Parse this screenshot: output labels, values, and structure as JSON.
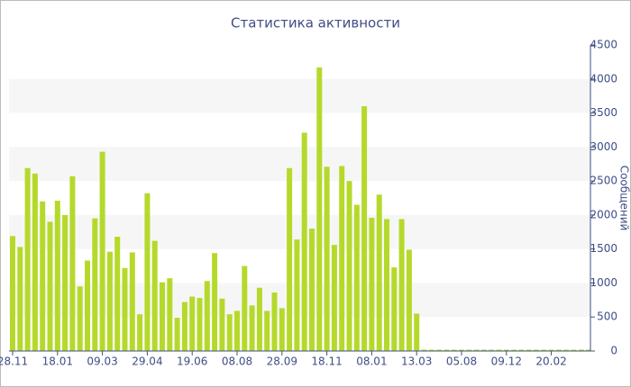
{
  "chart_data": {
    "type": "bar",
    "title": "Статистика активности",
    "y_axis_label": "Сообщений",
    "color": "#b5d92b",
    "categories": [
      "28.11",
      null,
      null,
      null,
      null,
      null,
      "18.01",
      null,
      null,
      null,
      null,
      null,
      "09.03",
      null,
      null,
      null,
      null,
      null,
      "29.04",
      null,
      null,
      null,
      null,
      null,
      "19.06",
      null,
      null,
      null,
      null,
      null,
      "08.08",
      null,
      null,
      null,
      null,
      null,
      "28.09",
      null,
      null,
      null,
      null,
      null,
      "18.11",
      null,
      null,
      null,
      null,
      null,
      "08.01",
      null,
      null,
      null,
      null,
      null,
      "13.03",
      null,
      null,
      null,
      null,
      null,
      "05.08",
      null,
      null,
      null,
      null,
      null,
      "09.12",
      null,
      null,
      null,
      null,
      null,
      "20.02",
      null,
      null,
      null,
      null,
      null
    ],
    "values": [
      1690,
      1530,
      2690,
      2610,
      2200,
      1900,
      2210,
      2000,
      2570,
      950,
      1330,
      1950,
      2930,
      1460,
      1680,
      1220,
      1450,
      540,
      2320,
      1620,
      1010,
      1070,
      490,
      720,
      800,
      780,
      1030,
      1440,
      770,
      540,
      590,
      1250,
      670,
      930,
      590,
      860,
      630,
      2690,
      1640,
      3210,
      1800,
      4170,
      2710,
      1560,
      2720,
      2500,
      2150,
      3600,
      1960,
      2300,
      1940,
      1230,
      1940,
      1490,
      550,
      0,
      0,
      0,
      0,
      0,
      0,
      0,
      0,
      0,
      0,
      0,
      0,
      0,
      0,
      0,
      0,
      0,
      0,
      0,
      0,
      0,
      0,
      0
    ],
    "ylim": [
      0,
      4500
    ],
    "yticks": [
      0,
      500,
      1000,
      1500,
      2000,
      2500,
      3000,
      3500,
      4000,
      4500
    ],
    "y_axis_side": "right",
    "striped_bands": true
  }
}
